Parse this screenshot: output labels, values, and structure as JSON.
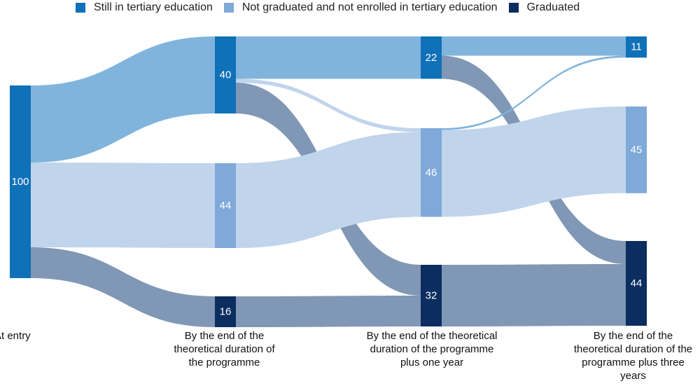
{
  "legend": [
    {
      "label": "Still in tertiary education",
      "color": "#0f71b8"
    },
    {
      "label": "Not graduated and not enrolled in tertiary education",
      "color": "#7ea9d9"
    },
    {
      "label": "Graduated",
      "color": "#0b2d60"
    }
  ],
  "stages": [
    "At entry",
    "By the end of the theoretical duration of the programme",
    "By the end of the theoretical duration of the programme plus one year",
    "By the end of the theoretical duration of the programme plus three years"
  ],
  "chart_data": {
    "type": "sankey",
    "nodes": [
      {
        "id": "entry",
        "stage": 0,
        "category": "Still in tertiary education",
        "value": 100
      },
      {
        "id": "s1_still",
        "stage": 1,
        "category": "Still in tertiary education",
        "value": 40
      },
      {
        "id": "s1_not",
        "stage": 1,
        "category": "Not graduated and not enrolled in tertiary education",
        "value": 44
      },
      {
        "id": "s1_grad",
        "stage": 1,
        "category": "Graduated",
        "value": 16
      },
      {
        "id": "s2_still",
        "stage": 2,
        "category": "Still in tertiary education",
        "value": 22
      },
      {
        "id": "s2_not",
        "stage": 2,
        "category": "Not graduated and not enrolled in tertiary education",
        "value": 46
      },
      {
        "id": "s2_grad",
        "stage": 2,
        "category": "Graduated",
        "value": 32
      },
      {
        "id": "s3_still",
        "stage": 3,
        "category": "Still in tertiary education",
        "value": 11
      },
      {
        "id": "s3_not",
        "stage": 3,
        "category": "Not graduated and not enrolled in tertiary education",
        "value": 45
      },
      {
        "id": "s3_grad",
        "stage": 3,
        "category": "Graduated",
        "value": 44
      }
    ],
    "links": [
      {
        "source": "entry",
        "target": "s1_still",
        "value": 40
      },
      {
        "source": "entry",
        "target": "s1_not",
        "value": 44
      },
      {
        "source": "entry",
        "target": "s1_grad",
        "value": 16
      },
      {
        "source": "s1_still",
        "target": "s2_still",
        "value": 22
      },
      {
        "source": "s1_still",
        "target": "s2_not",
        "value": 2
      },
      {
        "source": "s1_still",
        "target": "s2_grad",
        "value": 16
      },
      {
        "source": "s1_not",
        "target": "s2_not",
        "value": 44
      },
      {
        "source": "s1_grad",
        "target": "s2_grad",
        "value": 16
      },
      {
        "source": "s2_still",
        "target": "s3_still",
        "value": 10
      },
      {
        "source": "s2_still",
        "target": "s3_grad",
        "value": 12
      },
      {
        "source": "s2_not",
        "target": "s3_still",
        "value": 1
      },
      {
        "source": "s2_not",
        "target": "s3_not",
        "value": 45
      },
      {
        "source": "s2_grad",
        "target": "s3_grad",
        "value": 32
      }
    ],
    "link_colors": {
      "Still in tertiary education": "#80b4dc",
      "Not graduated and not enrolled in tertiary education": "#c0d4ec",
      "Graduated": "#8097b5"
    }
  }
}
